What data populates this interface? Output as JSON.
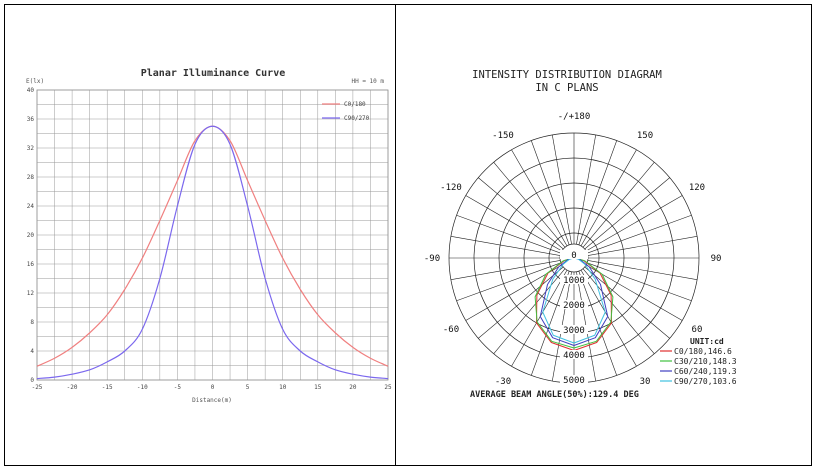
{
  "chart_data": [
    {
      "type": "line",
      "title": "Planar Illuminance Curve",
      "annotation": "HH = 10 m",
      "ylabel": "E(lx)",
      "xlabel": "Distance(m)",
      "xlim": [
        -25,
        25
      ],
      "ylim": [
        0,
        40
      ],
      "x_ticks": [
        "-25",
        "-20",
        "-15",
        "-10",
        "-5",
        "0",
        "5",
        "10",
        "15",
        "20",
        "25"
      ],
      "y_ticks": [
        "0",
        "4",
        "8",
        "12",
        "16",
        "20",
        "24",
        "28",
        "32",
        "36",
        "40"
      ],
      "grid": true,
      "legend_position": "top-right",
      "x": [
        -25,
        -22.5,
        -20,
        -17.5,
        -15,
        -12.5,
        -10,
        -7.5,
        -5,
        -2.5,
        0,
        2.5,
        5,
        7.5,
        10,
        12.5,
        15,
        17.5,
        20,
        22.5,
        25
      ],
      "series": [
        {
          "name": "C0/180",
          "color": "#f08080",
          "values": [
            1.9,
            3.0,
            4.5,
            6.5,
            9.0,
            12.5,
            16.8,
            22.0,
            27.5,
            33.0,
            35.0,
            33.0,
            27.5,
            22.0,
            16.8,
            12.5,
            9.0,
            6.5,
            4.5,
            3.0,
            1.9
          ]
        },
        {
          "name": "C90/270",
          "color": "#7b68ee",
          "values": [
            0.2,
            0.4,
            0.8,
            1.4,
            2.5,
            4.0,
            7.0,
            14.0,
            24.0,
            32.5,
            35.0,
            32.5,
            24.0,
            14.0,
            7.0,
            4.0,
            2.5,
            1.4,
            0.8,
            0.4,
            0.2
          ]
        }
      ]
    },
    {
      "type": "polar",
      "title_line1": "INTENSITY DISTRIBUTION DIAGRAM",
      "title_line2": "IN C PLANS",
      "angle_labels": [
        "-/+180",
        "150",
        "120",
        "90",
        "60",
        "30",
        "-150",
        "-120",
        "-90",
        "-60",
        "-30"
      ],
      "radial_labels": [
        "0",
        "1000",
        "2000",
        "3000",
        "4000",
        "5000"
      ],
      "r_max": 5000,
      "unit_label": "UNIT:cd",
      "footer": "AVERAGE BEAM ANGLE(50%):129.4 DEG",
      "series": [
        {
          "name": "C0/180,146.6",
          "color": "#e03030",
          "angles": [
            0,
            15,
            30,
            45,
            60,
            75,
            90
          ],
          "values": [
            3700,
            3500,
            3000,
            2100,
            1200,
            400,
            50
          ]
        },
        {
          "name": "C30/210,148.3",
          "color": "#40c040",
          "angles": [
            0,
            15,
            30,
            45,
            60,
            75,
            90
          ],
          "values": [
            3600,
            3450,
            2950,
            2200,
            1300,
            450,
            50
          ]
        },
        {
          "name": "C60/240,119.3",
          "color": "#4040c0",
          "angles": [
            0,
            15,
            30,
            45,
            60,
            75,
            90
          ],
          "values": [
            3500,
            3300,
            2700,
            1500,
            700,
            250,
            30
          ]
        },
        {
          "name": "C90/270,103.6",
          "color": "#40c0e0",
          "angles": [
            0,
            15,
            30,
            45,
            60,
            75,
            90
          ],
          "values": [
            3400,
            3200,
            2500,
            1200,
            500,
            180,
            20
          ]
        }
      ]
    }
  ]
}
